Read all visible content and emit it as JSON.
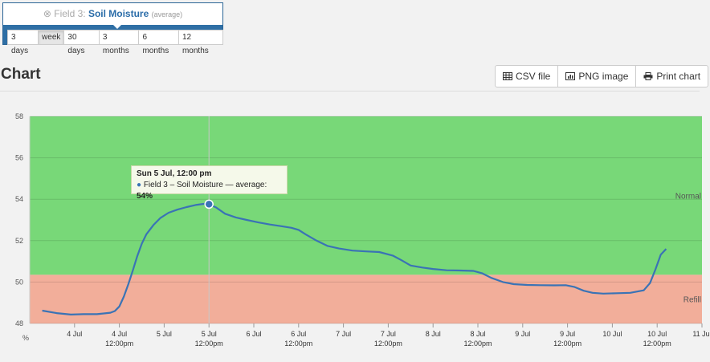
{
  "field_header": {
    "close_icon": "x-circle-icon",
    "prefix": "Field 3:",
    "name": "Soil Moisture",
    "aggregate": "(average)"
  },
  "ranges": [
    "3 days",
    "week",
    "30 days",
    "3 months",
    "6 months",
    "12 months"
  ],
  "active_range": "week",
  "page_title": "Chart",
  "toolbar": {
    "csv": "CSV file",
    "png": "PNG image",
    "print": "Print chart"
  },
  "tooltip": {
    "time": "Sun 5 Jul, 12:00 pm",
    "series_label": "Field 3 – Soil Moisture — average:",
    "value_label": "54%"
  },
  "chart_data": {
    "type": "line",
    "y_unit_label": "%",
    "ylim": [
      48,
      58
    ],
    "y_ticks": [
      48,
      50,
      52,
      54,
      56,
      58
    ],
    "x_ticks": [
      {
        "day": 4,
        "label": "4 Jul"
      },
      {
        "day": 4.5,
        "label": "4 Jul",
        "sub": "12:00pm"
      },
      {
        "day": 5,
        "label": "5 Jul"
      },
      {
        "day": 5.5,
        "label": "5 Jul",
        "sub": "12:00pm"
      },
      {
        "day": 6,
        "label": "6 Jul"
      },
      {
        "day": 6.5,
        "label": "6 Jul",
        "sub": "12:00pm"
      },
      {
        "day": 7,
        "label": "7 Jul"
      },
      {
        "day": 7.5,
        "label": "7 Jul",
        "sub": "12:00pm"
      },
      {
        "day": 8,
        "label": "8 Jul"
      },
      {
        "day": 8.5,
        "label": "8 Jul",
        "sub": "12:00pm"
      },
      {
        "day": 9,
        "label": "9 Jul"
      },
      {
        "day": 9.5,
        "label": "9 Jul",
        "sub": "12:00pm"
      },
      {
        "day": 10,
        "label": "10 Jul"
      },
      {
        "day": 10.5,
        "label": "10 Jul",
        "sub": "12:00pm"
      },
      {
        "day": 11,
        "label": "11 Jul"
      }
    ],
    "x_range_days": [
      3.5,
      11
    ],
    "zones": [
      {
        "name": "Normal",
        "from": 50.35,
        "to": 58,
        "color": "#78d878"
      },
      {
        "name": "Refill",
        "from": 48,
        "to": 50.35,
        "color": "#f2ae9a"
      }
    ],
    "series": [
      {
        "name": "Field 3 – Soil Moisture — average",
        "color": "#3a73b5",
        "points": [
          [
            3.64,
            48.62
          ],
          [
            3.8,
            48.5
          ],
          [
            3.96,
            48.43
          ],
          [
            4.1,
            48.45
          ],
          [
            4.25,
            48.45
          ],
          [
            4.4,
            48.52
          ],
          [
            4.45,
            48.6
          ],
          [
            4.5,
            48.82
          ],
          [
            4.55,
            49.3
          ],
          [
            4.6,
            49.9
          ],
          [
            4.65,
            50.55
          ],
          [
            4.7,
            51.25
          ],
          [
            4.75,
            51.85
          ],
          [
            4.8,
            52.3
          ],
          [
            4.88,
            52.75
          ],
          [
            4.96,
            53.1
          ],
          [
            5.05,
            53.35
          ],
          [
            5.15,
            53.5
          ],
          [
            5.25,
            53.62
          ],
          [
            5.35,
            53.72
          ],
          [
            5.45,
            53.78
          ],
          [
            5.5,
            53.76
          ],
          [
            5.58,
            53.6
          ],
          [
            5.68,
            53.3
          ],
          [
            5.8,
            53.12
          ],
          [
            5.92,
            53.0
          ],
          [
            6.05,
            52.88
          ],
          [
            6.18,
            52.78
          ],
          [
            6.3,
            52.7
          ],
          [
            6.42,
            52.62
          ],
          [
            6.5,
            52.52
          ],
          [
            6.58,
            52.3
          ],
          [
            6.7,
            52.0
          ],
          [
            6.82,
            51.75
          ],
          [
            6.95,
            51.62
          ],
          [
            7.1,
            51.52
          ],
          [
            7.25,
            51.48
          ],
          [
            7.4,
            51.45
          ],
          [
            7.55,
            51.28
          ],
          [
            7.65,
            51.05
          ],
          [
            7.75,
            50.8
          ],
          [
            7.88,
            50.7
          ],
          [
            8.0,
            50.63
          ],
          [
            8.15,
            50.57
          ],
          [
            8.3,
            50.56
          ],
          [
            8.45,
            50.54
          ],
          [
            8.55,
            50.42
          ],
          [
            8.65,
            50.2
          ],
          [
            8.78,
            50.0
          ],
          [
            8.9,
            49.9
          ],
          [
            9.05,
            49.86
          ],
          [
            9.2,
            49.85
          ],
          [
            9.35,
            49.84
          ],
          [
            9.48,
            49.85
          ],
          [
            9.58,
            49.76
          ],
          [
            9.68,
            49.58
          ],
          [
            9.78,
            49.48
          ],
          [
            9.9,
            49.44
          ],
          [
            10.05,
            49.46
          ],
          [
            10.2,
            49.48
          ],
          [
            10.35,
            49.6
          ],
          [
            10.42,
            49.95
          ],
          [
            10.48,
            50.6
          ],
          [
            10.54,
            51.32
          ],
          [
            10.6,
            51.6
          ]
        ]
      }
    ],
    "highlight_point": {
      "day": 5.5,
      "value": 53.76
    }
  }
}
